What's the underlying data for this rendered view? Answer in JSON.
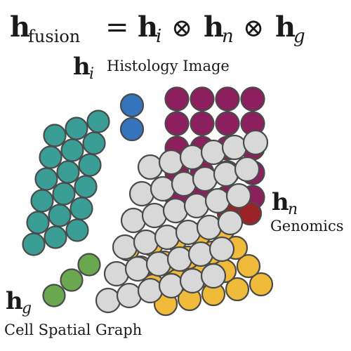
{
  "equation": {
    "lhs_symbol": "h",
    "lhs_subscript": "fusion",
    "equals": "=",
    "terms": [
      {
        "symbol": "h",
        "subscript": "i"
      },
      {
        "symbol": "h",
        "subscript": "n"
      },
      {
        "symbol": "h",
        "subscript": "g"
      }
    ],
    "operator": "⊗"
  },
  "modalities": {
    "histology": {
      "symbol": "h",
      "subscript": "i",
      "label": "Histology Image"
    },
    "genomics": {
      "symbol": "h",
      "subscript": "n",
      "label": "Genomics"
    },
    "graph": {
      "symbol": "h",
      "subscript": "g",
      "label": "Cell Spatial Graph"
    }
  },
  "colors": {
    "teal": "#3a9e96",
    "purple": "#8e1f5e",
    "blue": "#3674bb",
    "gray": "#d8d8d8",
    "red": "#9b2226",
    "yellow": "#f0bb3a",
    "green": "#6aa84f"
  }
}
